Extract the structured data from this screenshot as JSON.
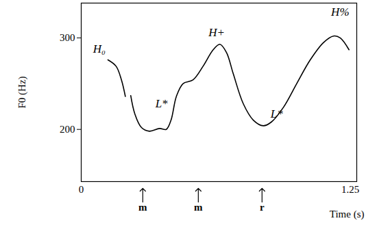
{
  "chart_data": {
    "type": "line",
    "xlabel": "Time (s)",
    "ylabel": "F0 (Hz)",
    "x": [
      0.124,
      0.162,
      0.187,
      0.205,
      0.217,
      0.23,
      0.249,
      0.28,
      0.317,
      0.364,
      0.395,
      0.417,
      0.442,
      0.473,
      0.519,
      0.566,
      0.613,
      0.644,
      0.675,
      0.706,
      0.753,
      0.8,
      0.846,
      0.883,
      0.939,
      1.001,
      1.064,
      1.126,
      1.172,
      1.203,
      1.244
    ],
    "values": [
      276,
      269,
      254,
      236,
      null,
      237,
      217,
      202,
      198,
      201,
      200,
      210,
      236,
      250,
      254,
      269,
      287,
      293,
      284,
      261,
      228,
      210,
      204,
      208,
      224,
      250,
      276,
      295,
      302,
      300,
      287
    ],
    "color": "#000000",
    "xlim": [
      0,
      1.28
    ],
    "ylim": [
      143,
      338
    ],
    "xticks": [
      0,
      1.25
    ],
    "yticks": [
      200,
      300
    ],
    "annotations": [
      {
        "text": "H₀",
        "x": 0.084,
        "y": 288
      },
      {
        "text": "L*",
        "x": 0.373,
        "y": 228
      },
      {
        "text": "H+",
        "x": 0.629,
        "y": 306
      },
      {
        "text": "L*",
        "x": 0.908,
        "y": 217
      },
      {
        "text": "H%",
        "x": 1.203,
        "y": 328
      }
    ],
    "time_marks": [
      {
        "text": "m",
        "x": 0.286
      },
      {
        "text": "m",
        "x": 0.544
      },
      {
        "text": "r",
        "x": 0.84
      }
    ]
  }
}
